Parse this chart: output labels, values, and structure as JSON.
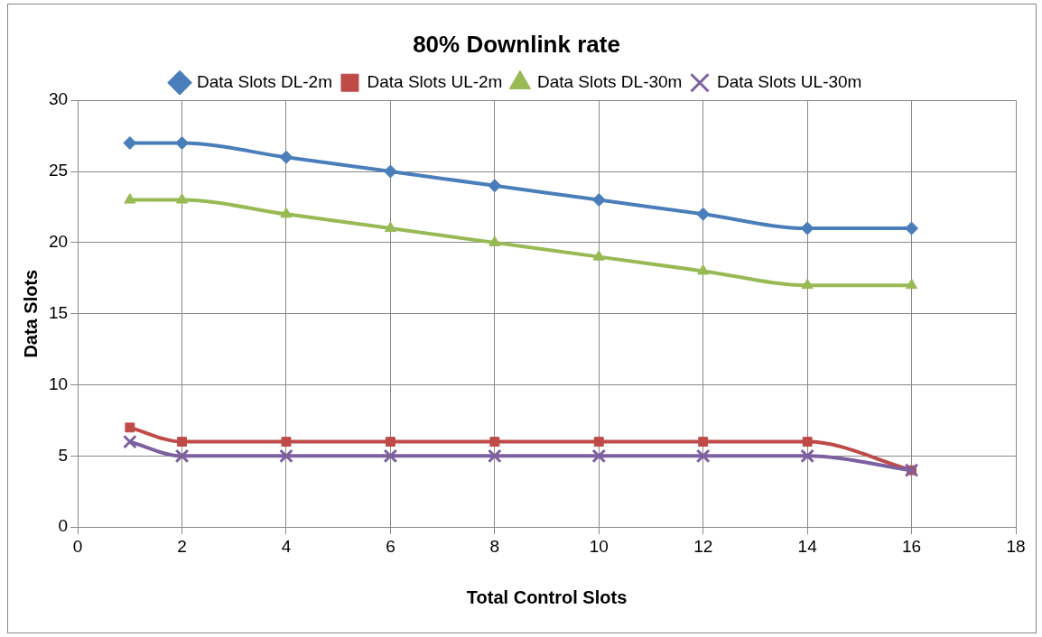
{
  "chart_data": {
    "type": "line",
    "title": "80% Downlink rate",
    "xlabel": "Total Control Slots",
    "ylabel": "Data Slots",
    "x": [
      1,
      2,
      4,
      6,
      8,
      10,
      12,
      14,
      16
    ],
    "series": [
      {
        "name": "Data Slots DL-2m",
        "color": "#4a7ebb",
        "marker": "diamond",
        "values": [
          27,
          27,
          26,
          25,
          24,
          23,
          22,
          21,
          21
        ]
      },
      {
        "name": "Data Slots UL-2m",
        "color": "#be4b48",
        "marker": "square",
        "values": [
          7,
          6,
          6,
          6,
          6,
          6,
          6,
          6,
          4
        ]
      },
      {
        "name": "Data Slots DL-30m",
        "color": "#98b954",
        "marker": "triangle",
        "values": [
          23,
          23,
          22,
          21,
          20,
          19,
          18,
          17,
          17
        ]
      },
      {
        "name": "Data Slots UL-30m",
        "color": "#7d60a0",
        "marker": "cross",
        "values": [
          6,
          5,
          5,
          5,
          5,
          5,
          5,
          5,
          4
        ]
      }
    ],
    "xlim": [
      0,
      18
    ],
    "xticks": [
      0,
      2,
      4,
      6,
      8,
      10,
      12,
      14,
      16,
      18
    ],
    "ylim": [
      0,
      30
    ],
    "yticks": [
      0,
      5,
      10,
      15,
      20,
      25,
      30
    ],
    "grid": true,
    "legend": "top",
    "line_style": "solid"
  }
}
